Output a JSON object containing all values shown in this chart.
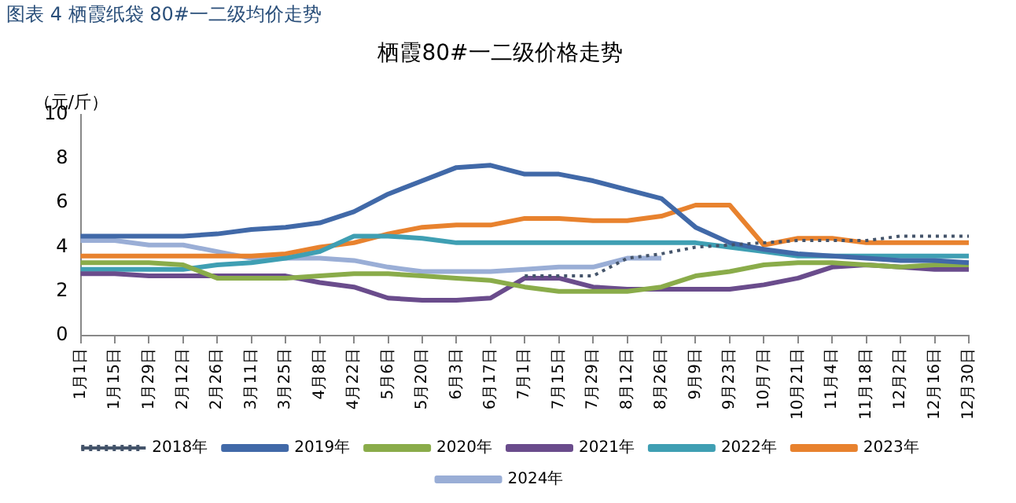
{
  "chart_data": {
    "type": "line",
    "title": "栖霞80#一二级价格走势",
    "ylabel": "（元/斤）",
    "annotations": [
      "图表 4 栖霞纸袋 80#一二级均价走势"
    ],
    "categories": [
      "1月1日",
      "1月15日",
      "1月29日",
      "2月12日",
      "2月26日",
      "3月11日",
      "3月25日",
      "4月8日",
      "4月22日",
      "5月6日",
      "5月20日",
      "6月3日",
      "6月17日",
      "7月1日",
      "7月15日",
      "7月29日",
      "8月12日",
      "8月26日",
      "9月9日",
      "9月23日",
      "10月7日",
      "10月21日",
      "11月4日",
      "11月18日",
      "12月2日",
      "12月16日",
      "12月30日"
    ],
    "ylim": [
      0,
      10
    ],
    "yticks": [
      0,
      2,
      4,
      6,
      8,
      10
    ],
    "grid": false,
    "legend": "bottom",
    "marker": "none",
    "series": [
      {
        "name": "2018年",
        "color": "#44546a",
        "line_style": "dotted",
        "values": [
          null,
          null,
          null,
          null,
          null,
          null,
          null,
          null,
          null,
          null,
          null,
          null,
          null,
          2.7,
          2.7,
          2.7,
          3.5,
          3.7,
          4.0,
          4.1,
          4.2,
          4.3,
          4.3,
          4.3,
          4.5,
          4.5,
          4.5
        ]
      },
      {
        "name": "2019年",
        "color": "#4169a8",
        "values": [
          4.5,
          4.5,
          4.5,
          4.5,
          4.6,
          4.8,
          4.9,
          5.1,
          5.6,
          6.4,
          7.0,
          7.6,
          7.7,
          7.3,
          7.3,
          7.0,
          6.6,
          6.2,
          4.9,
          4.2,
          3.9,
          3.7,
          3.6,
          3.5,
          3.4,
          3.4,
          3.3
        ]
      },
      {
        "name": "2020年",
        "color": "#8aac4a",
        "values": [
          3.3,
          3.3,
          3.3,
          3.2,
          2.6,
          2.6,
          2.6,
          2.7,
          2.8,
          2.8,
          2.7,
          2.6,
          2.5,
          2.2,
          2.0,
          2.0,
          2.0,
          2.2,
          2.7,
          2.9,
          3.2,
          3.3,
          3.3,
          3.2,
          3.1,
          3.2,
          3.2
        ]
      },
      {
        "name": "2021年",
        "color": "#6a4c8c",
        "values": [
          2.8,
          2.8,
          2.7,
          2.7,
          2.7,
          2.7,
          2.7,
          2.4,
          2.2,
          1.7,
          1.6,
          1.6,
          1.7,
          2.6,
          2.6,
          2.2,
          2.1,
          2.1,
          2.1,
          2.1,
          2.3,
          2.6,
          3.1,
          3.2,
          3.1,
          3.0,
          3.0
        ]
      },
      {
        "name": "2022年",
        "color": "#3f9fb3",
        "values": [
          3.0,
          3.0,
          3.0,
          3.0,
          3.2,
          3.3,
          3.5,
          3.8,
          4.5,
          4.5,
          4.4,
          4.2,
          4.2,
          4.2,
          4.2,
          4.2,
          4.2,
          4.2,
          4.2,
          4.0,
          3.8,
          3.6,
          3.6,
          3.6,
          3.6,
          3.6,
          3.6
        ]
      },
      {
        "name": "2023年",
        "color": "#e8822e",
        "values": [
          3.6,
          3.6,
          3.6,
          3.6,
          3.6,
          3.6,
          3.7,
          4.0,
          4.2,
          4.6,
          4.9,
          5.0,
          5.0,
          5.3,
          5.3,
          5.2,
          5.2,
          5.4,
          5.9,
          5.9,
          4.1,
          4.4,
          4.4,
          4.2,
          4.2,
          4.2,
          4.2
        ]
      },
      {
        "name": "2024年",
        "color": "#9aaed6",
        "values": [
          4.3,
          4.3,
          4.1,
          4.1,
          3.8,
          3.5,
          3.5,
          3.5,
          3.4,
          3.1,
          2.9,
          2.9,
          2.9,
          3.0,
          3.1,
          3.1,
          3.5,
          3.5,
          null,
          null,
          null,
          null,
          null,
          null,
          null,
          null,
          null
        ]
      }
    ]
  }
}
